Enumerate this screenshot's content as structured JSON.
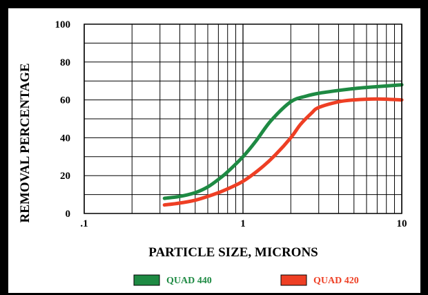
{
  "chart_data": {
    "type": "line",
    "title": "",
    "xlabel": "PARTICLE SIZE, MICRONS",
    "ylabel": "REMOVAL PERCENTAGE",
    "xscale": "log",
    "xlim": [
      0.1,
      10
    ],
    "ylim": [
      0,
      100
    ],
    "x_tick_labels": [
      ".1",
      "1",
      "10"
    ],
    "y_tick_labels": [
      "0",
      "20",
      "40",
      "60",
      "80",
      "100"
    ],
    "grid": true,
    "legend_position": "bottom",
    "series": [
      {
        "name": "QUAD 440",
        "color": "#1e8a43",
        "x": [
          0.32,
          0.4,
          0.5,
          0.6,
          0.7,
          0.8,
          1.0,
          1.2,
          1.5,
          2.0,
          2.5,
          3.0,
          4.0,
          5.0,
          7.0,
          10.0
        ],
        "y": [
          8,
          9,
          11,
          14,
          18,
          22,
          30,
          38,
          49,
          59,
          62,
          63.5,
          65,
          66,
          67,
          68
        ]
      },
      {
        "name": "QUAD 420",
        "color": "#ee3f24",
        "x": [
          0.32,
          0.4,
          0.5,
          0.6,
          0.7,
          0.8,
          1.0,
          1.3,
          1.6,
          2.0,
          2.3,
          2.7,
          3.0,
          4.0,
          5.0,
          7.0,
          10.0
        ],
        "y": [
          4.5,
          5.5,
          7,
          9,
          11,
          13,
          17,
          24,
          31,
          40,
          47,
          53,
          56,
          59,
          60,
          60.5,
          60
        ]
      }
    ]
  }
}
